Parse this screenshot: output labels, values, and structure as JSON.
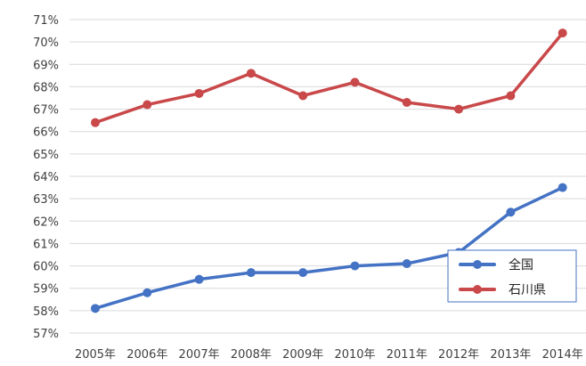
{
  "chart_data": {
    "type": "line",
    "x": [
      "2005年",
      "2006年",
      "2007年",
      "2008年",
      "2009年",
      "2010年",
      "2011年",
      "2012年",
      "2013年",
      "2014年"
    ],
    "series": [
      {
        "name": "全国",
        "color": "#4472c4",
        "values": [
          58.1,
          58.8,
          59.4,
          59.7,
          59.7,
          60.0,
          60.1,
          60.6,
          62.4,
          63.5
        ]
      },
      {
        "name": "石川県",
        "color": "#c9484a",
        "values": [
          66.4,
          67.2,
          67.7,
          68.6,
          67.6,
          68.2,
          67.3,
          67.0,
          67.6,
          70.4
        ]
      }
    ],
    "yticks": [
      "57%",
      "58%",
      "59%",
      "60%",
      "61%",
      "62%",
      "63%",
      "64%",
      "65%",
      "66%",
      "67%",
      "68%",
      "69%",
      "70%",
      "71%"
    ],
    "ylim": [
      57,
      71
    ],
    "grid": "horizontal",
    "legend": "bottom-right"
  }
}
